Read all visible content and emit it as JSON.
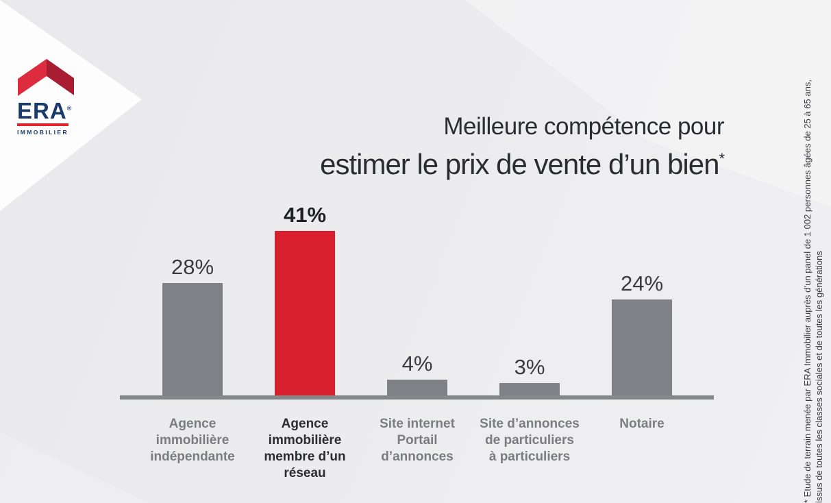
{
  "logo": {
    "brand": "ERA",
    "registered": "®",
    "subtitle": "IMMOBILIER"
  },
  "title": {
    "line1": "Meilleure compétence pour",
    "line2": "estimer le prix de vente d’un bien",
    "asterisk": "*"
  },
  "footnote": {
    "line1": "* Etude de terrain menée par ERA Immobilier auprès d’un panel de 1 002 personnes âgées de 25 à 65 ans,",
    "line2": "issus de toutes les classes sociales et de toutes les générations"
  },
  "colors": {
    "accent_red": "#d8202f",
    "bar_gray": "#7f8186",
    "axis_gray": "#84868a",
    "logo_red_light": "#dd2c3d",
    "logo_red_dark": "#a81d31",
    "logo_navy": "#1a3a6b",
    "title_dark": "#2a2c32",
    "label_gray": "#7a7c82",
    "label_dark": "#2c2d31"
  },
  "chart_data": {
    "type": "bar",
    "title": "Meilleure compétence pour estimer le prix de vente d’un bien*",
    "categories": [
      "Agence immobilière indépendante",
      "Agence immobilière membre d’un réseau",
      "Site internet Portail d’annonces",
      "Site d’annonces de particuliers à particuliers",
      "Notaire"
    ],
    "category_lines": [
      [
        "Agence",
        "immobilière",
        "indépendante"
      ],
      [
        "Agence",
        "immobilière",
        "membre d’un",
        "réseau"
      ],
      [
        "Site internet",
        "Portail",
        "d’annonces"
      ],
      [
        "Site d’annonces",
        "de particuliers",
        "à particuliers"
      ],
      [
        "Notaire"
      ]
    ],
    "values": [
      28,
      41,
      4,
      3,
      24
    ],
    "labels": [
      "28%",
      "41%",
      "4%",
      "3%",
      "24%"
    ],
    "unit": "%",
    "highlighted_index": 1,
    "ylim": [
      0,
      45
    ],
    "grid": false,
    "legend": false,
    "xlabel": "",
    "ylabel": ""
  }
}
